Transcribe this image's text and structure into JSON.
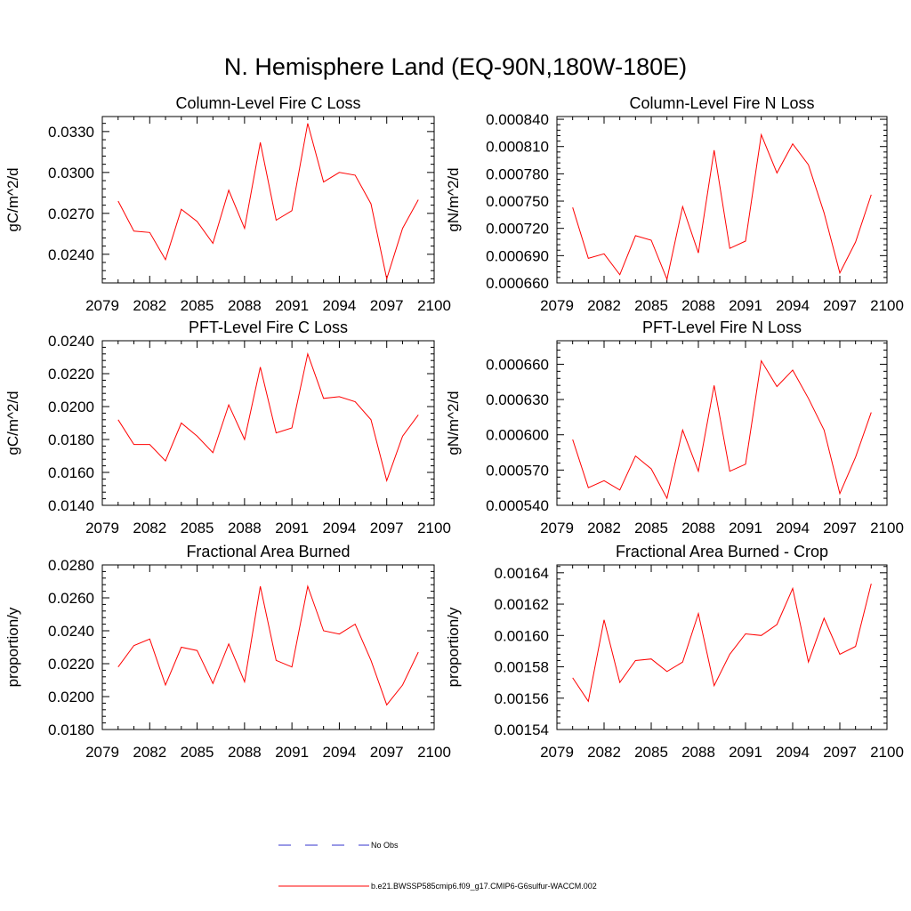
{
  "title": "N. Hemisphere Land (EQ-90N,180W-180E)",
  "legend": [
    {
      "label": "No Obs",
      "color": "#3333cc",
      "dashed": true
    },
    {
      "label": "b.e21.BWSSP585cmip6.f09_g17.CMIP6-G6sulfur-WACCM.002",
      "color": "#ff0000",
      "dashed": false
    }
  ],
  "chart_data": [
    {
      "type": "line",
      "title": "Column-Level Fire C Loss",
      "ylabel": "gC/m^2/d",
      "xlim": [
        2079,
        2100
      ],
      "xticks": [
        2079,
        2082,
        2085,
        2088,
        2091,
        2094,
        2097,
        2100
      ],
      "ylim": [
        0.0219,
        0.0341
      ],
      "yticks": [
        0.024,
        0.027,
        0.03,
        0.033
      ],
      "ytick_labels": [
        "0.0240",
        "0.0270",
        "0.0300",
        "0.0330"
      ],
      "series": [
        {
          "color": "#ff0000",
          "x": [
            2080,
            2081,
            2082,
            2083,
            2084,
            2085,
            2086,
            2087,
            2088,
            2089,
            2090,
            2091,
            2092,
            2093,
            2094,
            2095,
            2096,
            2097,
            2098,
            2099
          ],
          "y": [
            0.0279,
            0.0257,
            0.0256,
            0.0236,
            0.0273,
            0.0264,
            0.0248,
            0.0287,
            0.0259,
            0.0322,
            0.0265,
            0.0272,
            0.0336,
            0.0293,
            0.03,
            0.0298,
            0.0277,
            0.0222,
            0.0259,
            0.028
          ]
        }
      ]
    },
    {
      "type": "line",
      "title": "Column-Level Fire N Loss",
      "ylabel": "gN/m^2/d",
      "xlim": [
        2079,
        2100
      ],
      "xticks": [
        2079,
        2082,
        2085,
        2088,
        2091,
        2094,
        2097,
        2100
      ],
      "ylim": [
        0.00066,
        0.000843
      ],
      "yticks": [
        0.00066,
        0.00069,
        0.00072,
        0.00075,
        0.00078,
        0.00081,
        0.00084
      ],
      "ytick_labels": [
        "0.000660",
        "0.000690",
        "0.000720",
        "0.000750",
        "0.000780",
        "0.000810",
        "0.000840"
      ],
      "series": [
        {
          "color": "#ff0000",
          "x": [
            2080,
            2081,
            2082,
            2083,
            2084,
            2085,
            2086,
            2087,
            2088,
            2089,
            2090,
            2091,
            2092,
            2093,
            2094,
            2095,
            2096,
            2097,
            2098,
            2099
          ],
          "y": [
            0.000743,
            0.000687,
            0.000692,
            0.000669,
            0.000712,
            0.000707,
            0.000664,
            0.000744,
            0.000693,
            0.000806,
            0.000698,
            0.000706,
            0.000823,
            0.000781,
            0.000813,
            0.00079,
            0.000737,
            0.000671,
            0.000705,
            0.000757
          ]
        }
      ]
    },
    {
      "type": "line",
      "title": "PFT-Level Fire C Loss",
      "ylabel": "gC/m^2/d",
      "xlim": [
        2079,
        2100
      ],
      "xticks": [
        2079,
        2082,
        2085,
        2088,
        2091,
        2094,
        2097,
        2100
      ],
      "ylim": [
        0.014,
        0.024
      ],
      "yticks": [
        0.014,
        0.016,
        0.018,
        0.02,
        0.022,
        0.024
      ],
      "ytick_labels": [
        "0.0140",
        "0.0160",
        "0.0180",
        "0.0200",
        "0.0220",
        "0.0240"
      ],
      "series": [
        {
          "color": "#ff0000",
          "x": [
            2080,
            2081,
            2082,
            2083,
            2084,
            2085,
            2086,
            2087,
            2088,
            2089,
            2090,
            2091,
            2092,
            2093,
            2094,
            2095,
            2096,
            2097,
            2098,
            2099
          ],
          "y": [
            0.0192,
            0.0177,
            0.0177,
            0.0167,
            0.019,
            0.0182,
            0.0172,
            0.0201,
            0.018,
            0.0224,
            0.0184,
            0.0187,
            0.0232,
            0.0205,
            0.0206,
            0.0203,
            0.0192,
            0.0155,
            0.0182,
            0.0195
          ]
        }
      ]
    },
    {
      "type": "line",
      "title": "PFT-Level Fire N Loss",
      "ylabel": "gN/m^2/d",
      "xlim": [
        2079,
        2100
      ],
      "xticks": [
        2079,
        2082,
        2085,
        2088,
        2091,
        2094,
        2097,
        2100
      ],
      "ylim": [
        0.00054,
        0.00068
      ],
      "yticks": [
        0.00054,
        0.00057,
        0.0006,
        0.00063,
        0.00066
      ],
      "ytick_labels": [
        "0.000540",
        "0.000570",
        "0.000600",
        "0.000630",
        "0.000660"
      ],
      "series": [
        {
          "color": "#ff0000",
          "x": [
            2080,
            2081,
            2082,
            2083,
            2084,
            2085,
            2086,
            2087,
            2088,
            2089,
            2090,
            2091,
            2092,
            2093,
            2094,
            2095,
            2096,
            2097,
            2098,
            2099
          ],
          "y": [
            0.000596,
            0.000555,
            0.000561,
            0.000553,
            0.000582,
            0.000571,
            0.000546,
            0.000604,
            0.000569,
            0.000642,
            0.000569,
            0.000575,
            0.000663,
            0.000641,
            0.000655,
            0.000631,
            0.000604,
            0.00055,
            0.000581,
            0.000619
          ]
        }
      ]
    },
    {
      "type": "line",
      "title": "Fractional Area Burned",
      "ylabel": "proportion/y",
      "xlim": [
        2079,
        2100
      ],
      "xticks": [
        2079,
        2082,
        2085,
        2088,
        2091,
        2094,
        2097,
        2100
      ],
      "ylim": [
        0.018,
        0.028
      ],
      "yticks": [
        0.018,
        0.02,
        0.022,
        0.024,
        0.026,
        0.028
      ],
      "ytick_labels": [
        "0.0180",
        "0.0200",
        "0.0220",
        "0.0240",
        "0.0260",
        "0.0280"
      ],
      "series": [
        {
          "color": "#ff0000",
          "x": [
            2080,
            2081,
            2082,
            2083,
            2084,
            2085,
            2086,
            2087,
            2088,
            2089,
            2090,
            2091,
            2092,
            2093,
            2094,
            2095,
            2096,
            2097,
            2098,
            2099
          ],
          "y": [
            0.0218,
            0.0231,
            0.0235,
            0.0207,
            0.023,
            0.0228,
            0.0208,
            0.0232,
            0.0209,
            0.0267,
            0.0222,
            0.0218,
            0.0267,
            0.024,
            0.0238,
            0.0244,
            0.0222,
            0.0195,
            0.0207,
            0.0227
          ]
        }
      ]
    },
    {
      "type": "line",
      "title": "Fractional Area Burned - Crop",
      "ylabel": "proportion/y",
      "xlim": [
        2079,
        2100
      ],
      "xticks": [
        2079,
        2082,
        2085,
        2088,
        2091,
        2094,
        2097,
        2100
      ],
      "ylim": [
        0.00154,
        0.001645
      ],
      "yticks": [
        0.00154,
        0.00156,
        0.00158,
        0.0016,
        0.00162,
        0.00164
      ],
      "ytick_labels": [
        "0.00154",
        "0.00156",
        "0.00158",
        "0.00160",
        "0.00162",
        "0.00164"
      ],
      "series": [
        {
          "color": "#ff0000",
          "x": [
            2080,
            2081,
            2082,
            2083,
            2084,
            2085,
            2086,
            2087,
            2088,
            2089,
            2090,
            2091,
            2092,
            2093,
            2094,
            2095,
            2096,
            2097,
            2098,
            2099
          ],
          "y": [
            0.001573,
            0.001558,
            0.00161,
            0.00157,
            0.001584,
            0.001585,
            0.001577,
            0.001583,
            0.001614,
            0.001568,
            0.001588,
            0.001601,
            0.0016,
            0.001607,
            0.00163,
            0.001583,
            0.001611,
            0.001588,
            0.001593,
            0.001633
          ]
        }
      ]
    }
  ]
}
